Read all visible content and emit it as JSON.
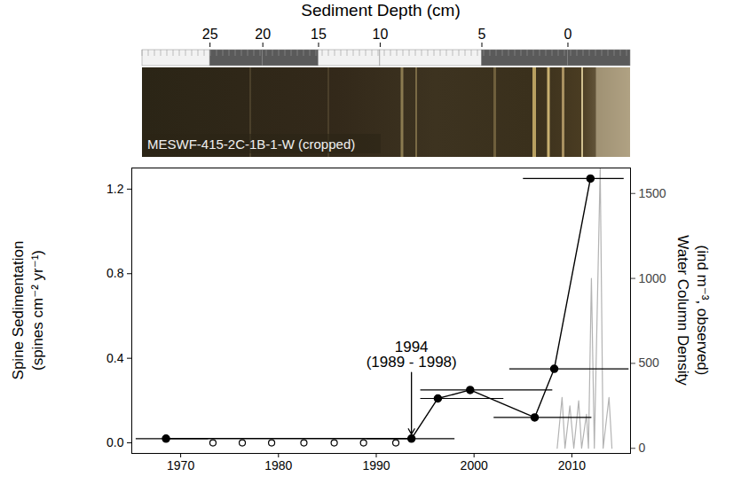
{
  "chart_data": {
    "type": "line",
    "xlim": [
      1965,
      2016
    ],
    "xticks": [
      1970,
      1980,
      1990,
      2000,
      2010
    ],
    "x2_label": "Sediment Depth (cm)",
    "x2ticks": [
      {
        "value": 1973.0,
        "label": "25"
      },
      {
        "value": 1978.4,
        "label": "20"
      },
      {
        "value": 1984.1,
        "label": "15"
      },
      {
        "value": 1990.4,
        "label": "10"
      },
      {
        "value": 2000.8,
        "label": "5"
      },
      {
        "value": 2009.6,
        "label": "0"
      }
    ],
    "ylim": [
      -0.05,
      1.3
    ],
    "yticks": [
      {
        "value": 0,
        "label": "0.0"
      },
      {
        "value": 0.4,
        "label": "0.4"
      },
      {
        "value": 0.8,
        "label": "0.8"
      },
      {
        "value": 1.2,
        "label": "1.2"
      }
    ],
    "y_label": [
      "Spine Sedimentation",
      "(spines cm⁻² yr⁻¹)"
    ],
    "y2lim": [
      -30,
      1650
    ],
    "y2ticks": [
      0,
      500,
      1000,
      1500
    ],
    "y2_label": [
      "Water Column Density",
      "(ind m⁻³, observed)"
    ],
    "image_label": "MESWF-415-2C-1B-1-W (cropped)",
    "grid": false,
    "annotations": [
      {
        "text": [
          "1994",
          "(1989 - 1998)"
        ],
        "x": 1993.6,
        "y": 0.02
      }
    ],
    "series": [
      {
        "type": "line",
        "color": "#000000",
        "marker": "circle",
        "line_style": "solid",
        "x": [
          1968.5,
          1993.6,
          1996.3,
          1999.6,
          2006.2,
          2008.2,
          2011.9
        ],
        "values": [
          0.02,
          0.02,
          0.21,
          0.25,
          0.12,
          0.35,
          1.25
        ],
        "xerr_low": [
          1965.4,
          1989,
          1994.5,
          1994.5,
          2002,
          2003.6,
          2005
        ],
        "xerr_high": [
          1972.8,
          1998,
          2003,
          2008,
          2012,
          2015.8,
          2015.3
        ]
      },
      {
        "type": "scatter",
        "color": "#000000",
        "marker": "open_circle",
        "x": [
          1973.3,
          1976.3,
          1979.3,
          1982.6,
          1985.7,
          1988.7,
          1992.0
        ],
        "values": [
          0,
          0,
          0,
          0,
          0,
          0,
          0
        ]
      },
      {
        "type": "line",
        "color": "#b3b3b3",
        "axis": "y2",
        "line_style": "solid",
        "x": [
          2008.5,
          2009.0,
          2009.3,
          2009.8,
          2010.2,
          2010.7,
          2011.0,
          2011.5,
          2011.7,
          2012.0,
          2012.3,
          2012.9,
          2013.2,
          2013.8,
          2014.1
        ],
        "values": [
          0,
          300,
          0,
          250,
          0,
          280,
          0,
          200,
          0,
          1000,
          0,
          1650,
          0,
          300,
          0
        ]
      }
    ]
  }
}
